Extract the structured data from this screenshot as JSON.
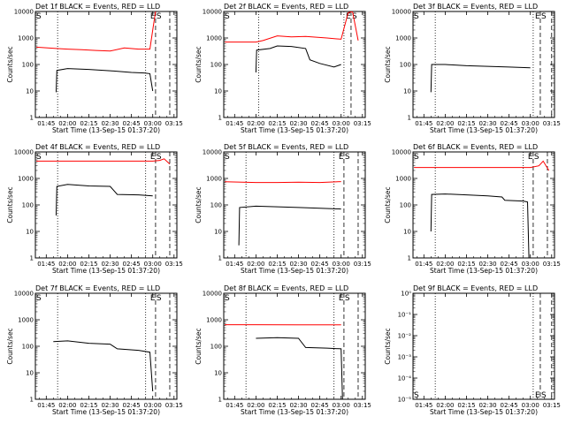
{
  "figure": {
    "xlabel": "Start Time (13-Sep-15 01:37:20)",
    "ylabel": "Counts/sec",
    "x_tick_labels": [
      "01:45",
      "02:00",
      "02:15",
      "02:30",
      "02:45",
      "03:00",
      "03:15"
    ],
    "y_tick_labels": [
      "1",
      "10",
      "100",
      "1000",
      "10000"
    ],
    "marker_labels": {
      "start": "S",
      "end": "E",
      "start2": "S"
    },
    "colors": {
      "events": "#000000",
      "lld": "#ff0000"
    }
  },
  "chart_data": [
    {
      "type": "line",
      "title": "Det 1f BLACK = Events, RED = LLD",
      "x_range": [
        "01:37:20",
        "03:17:00"
      ],
      "ylim": [
        1,
        10000
      ],
      "y_scale": "log",
      "vlines": {
        "dotted": [
          "01:53:00",
          "02:55:00"
        ],
        "dashed": [
          "03:02:00",
          "03:12:00"
        ]
      },
      "series": [
        {
          "name": "Events",
          "color": "#000000",
          "points": [
            [
              "01:52:00",
              9
            ],
            [
              "01:52:30",
              60
            ],
            [
              "02:00:00",
              70
            ],
            [
              "02:15:00",
              65
            ],
            [
              "02:30:00",
              58
            ],
            [
              "02:45:00",
              50
            ],
            [
              "02:54:00",
              48
            ],
            [
              "02:58:00",
              45
            ],
            [
              "03:00:00",
              10
            ]
          ]
        },
        {
          "name": "LLD",
          "color": "#ff0000",
          "points": [
            [
              "01:38:00",
              450
            ],
            [
              "01:52:00",
              400
            ],
            [
              "02:00:00",
              380
            ],
            [
              "02:10:00",
              360
            ],
            [
              "02:20:00",
              340
            ],
            [
              "02:30:00",
              320
            ],
            [
              "02:40:00",
              420
            ],
            [
              "02:50:00",
              380
            ],
            [
              "02:58:00",
              380
            ],
            [
              "03:00:00",
              2000
            ],
            [
              "03:02:00",
              10000
            ]
          ]
        }
      ]
    },
    {
      "type": "line",
      "title": "Det 2f BLACK = Events, RED = LLD",
      "x_range": [
        "01:37:20",
        "03:17:00"
      ],
      "ylim": [
        1,
        10000
      ],
      "y_scale": "log",
      "vlines": {
        "dotted": [
          "02:02:00",
          "03:02:00"
        ],
        "dashed": [
          "03:07:00",
          "03:17:00"
        ]
      },
      "series": [
        {
          "name": "Events",
          "color": "#000000",
          "points": [
            [
              "02:00:00",
              50
            ],
            [
              "02:00:30",
              350
            ],
            [
              "02:10:00",
              400
            ],
            [
              "02:15:00",
              500
            ],
            [
              "02:25:00",
              480
            ],
            [
              "02:35:00",
              400
            ],
            [
              "02:38:00",
              150
            ],
            [
              "02:45:00",
              110
            ],
            [
              "02:55:00",
              80
            ],
            [
              "03:00:00",
              100
            ]
          ]
        },
        {
          "name": "LLD",
          "color": "#ff0000",
          "points": [
            [
              "01:38:00",
              700
            ],
            [
              "02:00:00",
              700
            ],
            [
              "02:05:00",
              800
            ],
            [
              "02:15:00",
              1200
            ],
            [
              "02:25:00",
              1100
            ],
            [
              "02:35:00",
              1150
            ],
            [
              "02:50:00",
              1000
            ],
            [
              "03:00:00",
              900
            ],
            [
              "03:05:00",
              9000
            ],
            [
              "03:08:00",
              10000
            ],
            [
              "03:12:00",
              800
            ]
          ]
        }
      ]
    },
    {
      "type": "line",
      "title": "Det 3f BLACK = Events, RED = LLD",
      "x_range": [
        "01:37:20",
        "03:17:00"
      ],
      "ylim": [
        1,
        10000
      ],
      "y_scale": "log",
      "vlines": {
        "dotted": [
          "01:53:00",
          "03:02:00"
        ],
        "dashed": [
          "03:07:00",
          "03:15:00"
        ]
      },
      "series": [
        {
          "name": "Events",
          "color": "#000000",
          "points": [
            [
              "01:50:00",
              9
            ],
            [
              "01:50:30",
              100
            ],
            [
              "02:00:00",
              100
            ],
            [
              "02:15:00",
              90
            ],
            [
              "02:30:00",
              85
            ],
            [
              "02:45:00",
              80
            ],
            [
              "03:00:00",
              75
            ]
          ]
        }
      ]
    },
    {
      "type": "line",
      "title": "Det 4f BLACK = Events, RED = LLD",
      "x_range": [
        "01:37:20",
        "03:17:00"
      ],
      "ylim": [
        1,
        10000
      ],
      "y_scale": "log",
      "vlines": {
        "dotted": [
          "01:53:00",
          "02:55:00"
        ],
        "dashed": [
          "03:02:00",
          "03:12:00"
        ]
      },
      "series": [
        {
          "name": "Events",
          "color": "#000000",
          "points": [
            [
              "01:52:00",
              40
            ],
            [
              "01:52:30",
              500
            ],
            [
              "02:00:00",
              600
            ],
            [
              "02:15:00",
              520
            ],
            [
              "02:30:00",
              500
            ],
            [
              "02:35:00",
              250
            ],
            [
              "02:50:00",
              240
            ],
            [
              "03:00:00",
              220
            ]
          ]
        },
        {
          "name": "LLD",
          "color": "#ff0000",
          "points": [
            [
              "01:38:00",
              4500
            ],
            [
              "02:00:00",
              4500
            ],
            [
              "02:30:00",
              4500
            ],
            [
              "03:00:00",
              4500
            ],
            [
              "03:05:00",
              4800
            ],
            [
              "03:08:00",
              5500
            ],
            [
              "03:12:00",
              3500
            ]
          ]
        }
      ]
    },
    {
      "type": "line",
      "title": "Det 5f BLACK = Events, RED = LLD",
      "x_range": [
        "01:37:20",
        "03:17:00"
      ],
      "ylim": [
        1,
        10000
      ],
      "y_scale": "log",
      "vlines": {
        "dotted": [
          "01:53:00",
          "02:55:00"
        ],
        "dashed": [
          "03:02:00",
          "03:12:00"
        ]
      },
      "series": [
        {
          "name": "Events",
          "color": "#000000",
          "points": [
            [
              "01:48:00",
              3
            ],
            [
              "01:48:30",
              80
            ],
            [
              "02:00:00",
              90
            ],
            [
              "02:15:00",
              85
            ],
            [
              "02:30:00",
              80
            ],
            [
              "02:45:00",
              75
            ],
            [
              "03:00:00",
              70
            ]
          ]
        },
        {
          "name": "LLD",
          "color": "#ff0000",
          "points": [
            [
              "01:38:00",
              750
            ],
            [
              "02:00:00",
              700
            ],
            [
              "02:15:00",
              700
            ],
            [
              "02:30:00",
              720
            ],
            [
              "02:45:00",
              700
            ],
            [
              "03:00:00",
              760
            ]
          ]
        }
      ]
    },
    {
      "type": "line",
      "title": "Det 6f BLACK = Events, RED = LLD",
      "x_range": [
        "01:37:20",
        "03:17:00"
      ],
      "ylim": [
        1,
        10000
      ],
      "y_scale": "log",
      "vlines": {
        "dotted": [
          "01:53:00",
          "02:55:00"
        ],
        "dashed": [
          "03:02:00",
          "03:12:00"
        ]
      },
      "series": [
        {
          "name": "Events",
          "color": "#000000",
          "points": [
            [
              "01:50:00",
              10
            ],
            [
              "01:50:30",
              250
            ],
            [
              "02:00:00",
              260
            ],
            [
              "02:15:00",
              240
            ],
            [
              "02:30:00",
              220
            ],
            [
              "02:40:00",
              200
            ],
            [
              "02:42:00",
              150
            ],
            [
              "02:55:00",
              140
            ],
            [
              "02:58:00",
              130
            ],
            [
              "02:59:00",
              1
            ]
          ]
        },
        {
          "name": "LLD",
          "color": "#ff0000",
          "points": [
            [
              "01:38:00",
              2600
            ],
            [
              "02:00:00",
              2600
            ],
            [
              "02:30:00",
              2600
            ],
            [
              "03:00:00",
              2600
            ],
            [
              "03:06:00",
              3000
            ],
            [
              "03:09:00",
              4500
            ],
            [
              "03:13:00",
              2000
            ]
          ]
        }
      ]
    },
    {
      "type": "line",
      "title": "Det 7f BLACK = Events, RED = LLD",
      "x_range": [
        "01:37:20",
        "03:17:00"
      ],
      "ylim": [
        1,
        10000
      ],
      "y_scale": "log",
      "vlines": {
        "dotted": [
          "01:53:00",
          "02:55:00"
        ],
        "dashed": [
          "03:02:00",
          "03:12:00"
        ]
      },
      "series": [
        {
          "name": "Events",
          "color": "#000000",
          "points": [
            [
              "01:50:00",
              150
            ],
            [
              "02:00:00",
              160
            ],
            [
              "02:15:00",
              130
            ],
            [
              "02:30:00",
              120
            ],
            [
              "02:35:00",
              80
            ],
            [
              "02:50:00",
              70
            ],
            [
              "02:58:00",
              60
            ],
            [
              "03:00:00",
              2
            ]
          ]
        }
      ]
    },
    {
      "type": "line",
      "title": "Det 8f BLACK = Events, RED = LLD",
      "x_range": [
        "01:37:20",
        "03:17:00"
      ],
      "ylim": [
        1,
        10000
      ],
      "y_scale": "log",
      "vlines": {
        "dotted": [
          "01:53:00",
          "02:55:00"
        ],
        "dashed": [
          "03:02:00",
          "03:12:00"
        ]
      },
      "series": [
        {
          "name": "Events",
          "color": "#000000",
          "points": [
            [
              "02:00:00",
              200
            ],
            [
              "02:15:00",
              210
            ],
            [
              "02:30:00",
              200
            ],
            [
              "02:35:00",
              90
            ],
            [
              "02:50:00",
              85
            ],
            [
              "03:00:00",
              80
            ],
            [
              "03:01:00",
              1
            ]
          ]
        },
        {
          "name": "LLD",
          "color": "#ff0000",
          "points": [
            [
              "01:38:00",
              650
            ],
            [
              "02:00:00",
              650
            ],
            [
              "02:30:00",
              640
            ],
            [
              "03:00:00",
              640
            ]
          ]
        }
      ]
    },
    {
      "type": "line",
      "title": "Det 9f BLACK = Events, RED = LLD",
      "x_range": [
        "01:37:20",
        "03:17:00"
      ],
      "y_tick_labels": [
        "10⁰",
        "10⁻¹",
        "10⁻²",
        "10⁻³",
        "10⁻⁴",
        "10⁻⁵"
      ],
      "ylim": [
        1e-05,
        1
      ],
      "y_scale": "log",
      "vlines": {
        "dotted": [
          "01:53:00",
          "03:02:00"
        ],
        "dashed": [
          "03:07:00",
          "03:15:00"
        ]
      },
      "series": []
    }
  ]
}
